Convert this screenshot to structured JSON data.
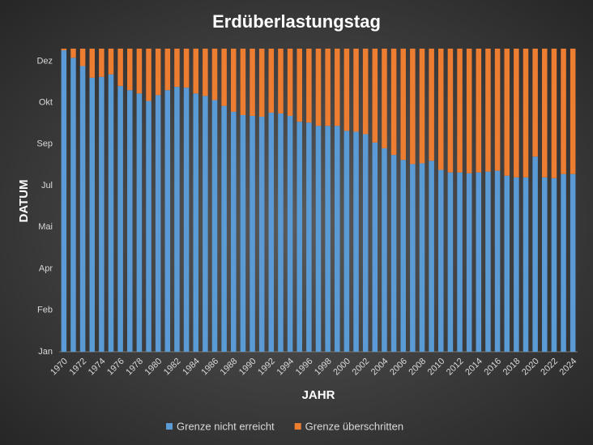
{
  "chart_data": {
    "type": "stacked_bar",
    "title": "Erdüberlastungstag",
    "y_label": "DATUM",
    "x_label": "JAHR",
    "categories": [
      "1970",
      null,
      "1972",
      null,
      "1974",
      null,
      "1976",
      null,
      "1978",
      null,
      "1980",
      null,
      "1982",
      null,
      "1984",
      null,
      "1986",
      null,
      "1988",
      null,
      "1990",
      null,
      "1992",
      null,
      "1994",
      null,
      "1996",
      null,
      "1998",
      null,
      "2000",
      null,
      "2002",
      null,
      "2004",
      null,
      "2006",
      null,
      "2008",
      null,
      "2010",
      null,
      "2012",
      null,
      "2014",
      null,
      "2016",
      null,
      "2018",
      null,
      "2020",
      null,
      "2022",
      null,
      "2024"
    ],
    "series": [
      {
        "name": "Grenze nicht erreicht",
        "color": "#5b9bd5",
        "values": [
          363,
          354,
          344,
          330,
          331,
          334,
          320,
          315,
          311,
          302,
          309,
          315,
          319,
          318,
          311,
          308,
          303,
          296,
          289,
          285,
          284,
          283,
          288,
          287,
          284,
          277,
          276,
          272,
          272,
          272,
          266,
          265,
          262,
          252,
          245,
          237,
          231,
          226,
          227,
          230,
          219,
          216,
          216,
          215,
          216,
          217,
          218,
          212,
          210,
          210,
          235,
          210,
          209,
          214,
          214
        ]
      },
      {
        "name": "Grenze überschritten",
        "color": "#ed7d31",
        "values": [
          2,
          11,
          21,
          35,
          34,
          31,
          45,
          50,
          54,
          63,
          56,
          50,
          46,
          47,
          54,
          57,
          62,
          69,
          76,
          80,
          81,
          82,
          77,
          78,
          81,
          88,
          89,
          93,
          93,
          93,
          99,
          100,
          103,
          113,
          120,
          128,
          134,
          139,
          138,
          135,
          146,
          149,
          149,
          150,
          149,
          148,
          147,
          153,
          155,
          155,
          130,
          155,
          156,
          151,
          151
        ]
      }
    ],
    "ylim": [
      0,
      365
    ],
    "yticks": [
      {
        "value": 0,
        "label": "Jan"
      },
      {
        "value": 50,
        "label": "Feb"
      },
      {
        "value": 100,
        "label": "Apr"
      },
      {
        "value": 150,
        "label": "Mai"
      },
      {
        "value": 200,
        "label": "Jul"
      },
      {
        "value": 250,
        "label": "Sep"
      },
      {
        "value": 300,
        "label": "Okt"
      },
      {
        "value": 350,
        "label": "Dez"
      }
    ],
    "grid": false
  }
}
